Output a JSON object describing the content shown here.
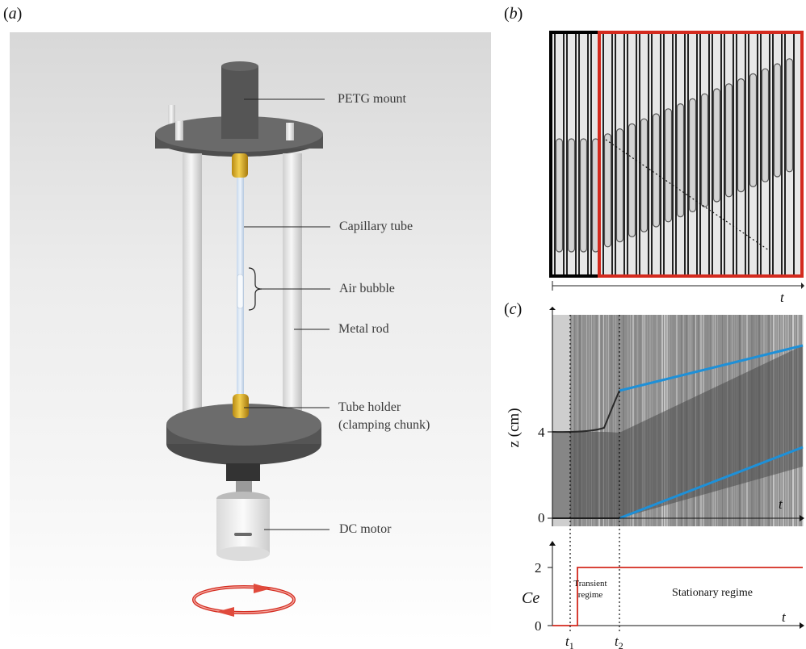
{
  "panels": {
    "a": {
      "label_paren_open": "(",
      "label_letter": "a",
      "label_paren_close": ")"
    },
    "b": {
      "label_paren_open": "(",
      "label_letter": "b",
      "label_paren_close": ")",
      "axis_label": "t"
    },
    "c": {
      "label_paren_open": "(",
      "label_letter": "c",
      "label_paren_close": ")"
    }
  },
  "callouts": {
    "petg_mount": "PETG mount",
    "capillary_tube": "Capillary tube",
    "air_bubble": "Air bubble",
    "metal_rod": "Metal rod",
    "tube_holder_line1": "Tube holder",
    "tube_holder_line2": "(clamping chunk)",
    "dc_motor": "DC motor"
  },
  "spacetime": {
    "y_axis_label": "z (cm)",
    "y_ticks": [
      "4",
      "0"
    ],
    "x_axis_label": "t",
    "markers": [
      "t",
      "t"
    ],
    "marker_subscripts": [
      "1",
      "2"
    ]
  },
  "chart_data": {
    "type": "line",
    "ylabel": "Ce",
    "xlabel": "t",
    "y_ticks": [
      0,
      2
    ],
    "series": [
      {
        "values": [
          [
            0,
            0
          ],
          [
            1,
            0
          ],
          [
            1,
            2
          ],
          [
            10,
            2
          ]
        ]
      }
    ],
    "annotations": [
      "Transient",
      "regime",
      "Stationary regime"
    ],
    "markers": [
      "t1",
      "t2"
    ]
  },
  "colors": {
    "highlight_red": "#d42a1e",
    "fit_blue": "#1e90d8",
    "mount_gray": "#5a5a5a",
    "brass": "#e0b429"
  }
}
